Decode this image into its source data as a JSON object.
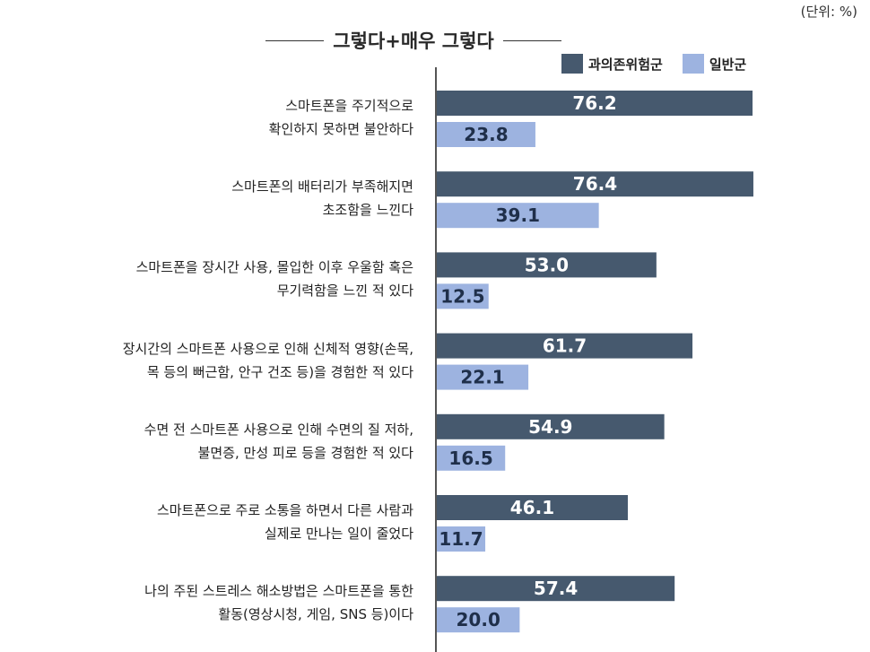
{
  "unit_note": "(단위:  %)",
  "chart_data": {
    "type": "bar",
    "orientation": "horizontal",
    "title": "그렇다+매우 그렇다",
    "categories": [
      [
        "스마트폰을 주기적으로",
        "확인하지 못하면 불안하다"
      ],
      [
        "스마트폰의 배터리가 부족해지면",
        "초조함을 느낀다"
      ],
      [
        "스마트폰을 장시간 사용, 몰입한 이후 우울함 혹은",
        "무기력함을 느낀 적 있다"
      ],
      [
        "장시간의 스마트폰 사용으로 인해 신체적 영향(손목,",
        "목 등의 뻐근함, 안구 건조 등)을 경험한 적 있다"
      ],
      [
        "수면 전 스마트폰 사용으로 인해 수면의 질 저하,",
        "불면증, 만성 피로 등을 경험한 적 있다"
      ],
      [
        "스마트폰으로 주로 소통을 하면서 다른 사람과",
        "실제로 만나는 일이 줄었다"
      ],
      [
        "나의 주된 스트레스 해소방법은 스마트폰을 통한",
        "활동(영상시청, 게임, SNS 등)이다"
      ]
    ],
    "series": [
      {
        "name": "과의존위험군",
        "color": "#46596e",
        "values": [
          76.2,
          76.4,
          53.0,
          61.7,
          54.9,
          46.1,
          57.4
        ]
      },
      {
        "name": "일반군",
        "color": "#9db3e0",
        "values": [
          23.8,
          39.1,
          12.5,
          22.1,
          16.5,
          11.7,
          20.0
        ]
      }
    ],
    "xlim": [
      0,
      100
    ],
    "grid": false,
    "legend_position": "top-right",
    "value_label_color": "#ffffff",
    "value_label_color_light": "#1f2f4a"
  }
}
